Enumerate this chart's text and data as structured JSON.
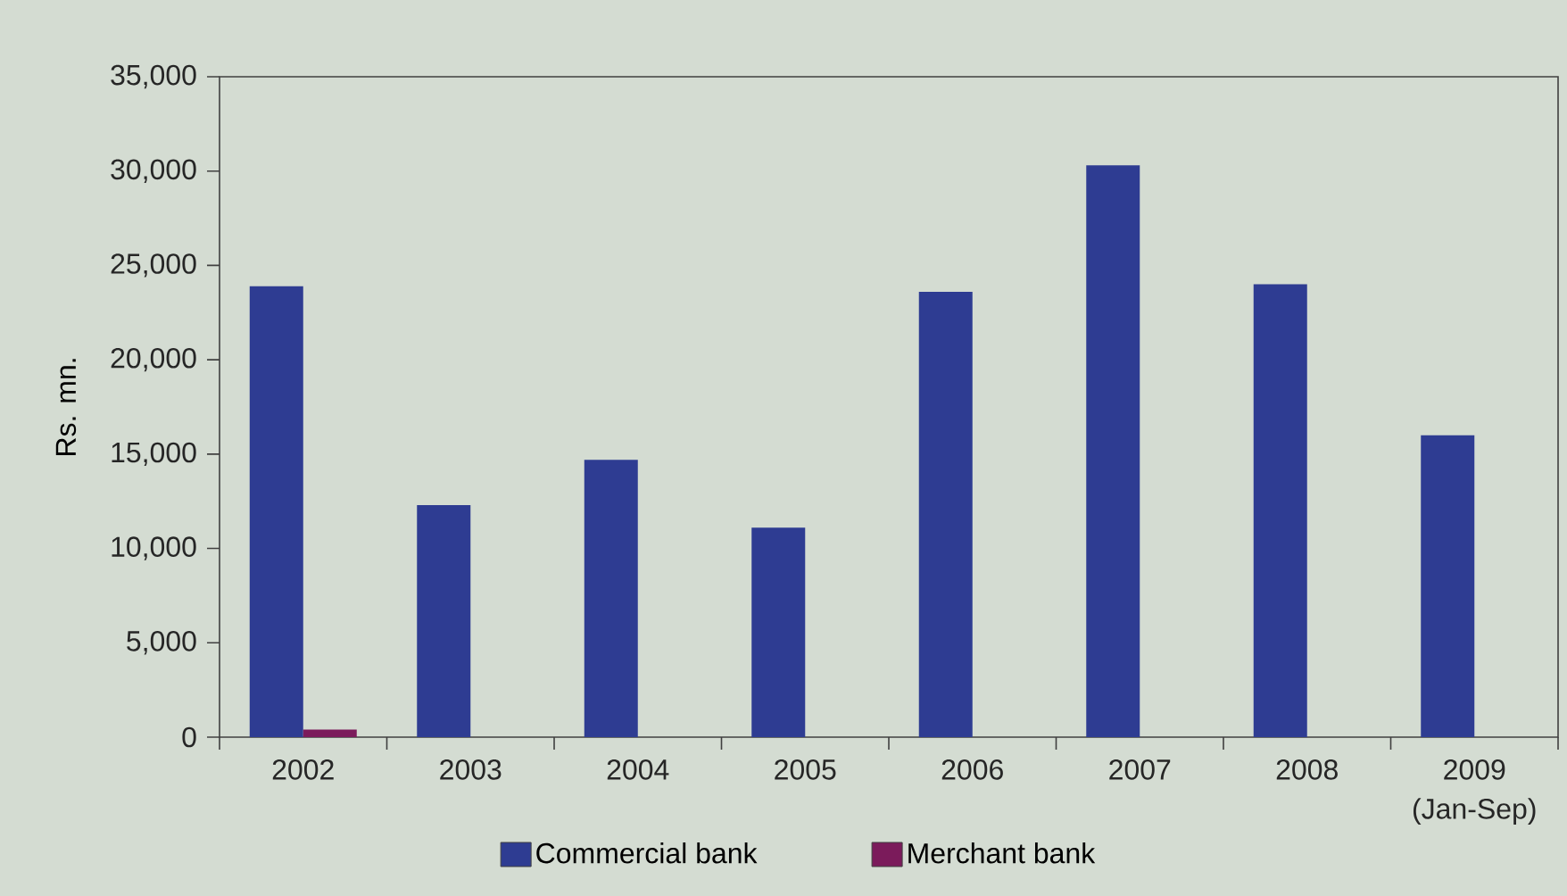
{
  "chart_data": {
    "type": "bar",
    "ylabel": "Rs. mn.",
    "categories": [
      "2002",
      "2003",
      "2004",
      "2005",
      "2006",
      "2007",
      "2008",
      "2009 (Jan-Sep)"
    ],
    "series": [
      {
        "name": "Commercial bank",
        "color": "#2e3c92",
        "values": [
          23900,
          12300,
          14700,
          11100,
          23600,
          30300,
          24000,
          16000
        ]
      },
      {
        "name": "Merchant bank",
        "color": "#7b1b5b",
        "values": [
          400,
          null,
          null,
          null,
          null,
          null,
          null,
          null
        ]
      }
    ],
    "ylim": [
      0,
      35000
    ],
    "yticks": [
      0,
      {
        "value": 5000,
        "label": "5,000"
      },
      {
        "value": 10000,
        "label": "10,000"
      },
      {
        "value": 15000,
        "label": "15,000"
      },
      {
        "value": 20000,
        "label": "20,000"
      },
      {
        "value": 25000,
        "label": "25,000"
      },
      {
        "value": 30000,
        "label": "30,000"
      },
      {
        "value": 35000,
        "label": "35,000"
      }
    ],
    "legend": "bottom"
  }
}
